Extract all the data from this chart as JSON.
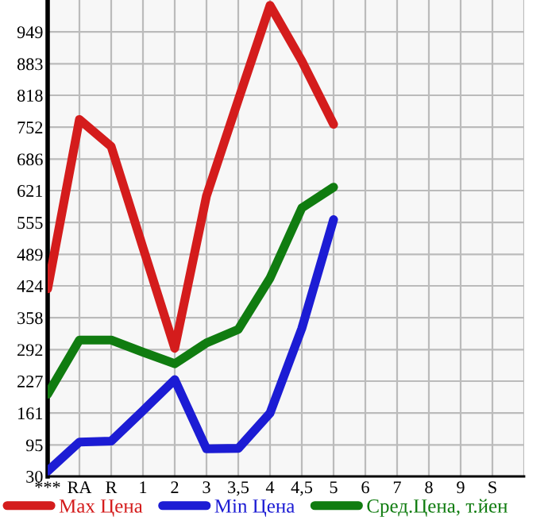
{
  "chart_data": {
    "type": "line",
    "categories": [
      "***",
      "RA",
      "R",
      "1",
      "2",
      "3",
      "3,5",
      "4",
      "4,5",
      "5",
      "6",
      "7",
      "8",
      "9",
      "S",
      null
    ],
    "series": [
      {
        "name": "Max Цена",
        "color": "#d41c1c",
        "values": [
          418,
          768,
          712,
          503,
          295,
          610,
          808,
          1004,
          889,
          758,
          null,
          null,
          null,
          null,
          null,
          null
        ]
      },
      {
        "name": "Min Цена",
        "color": "#1c1cd4",
        "values": [
          41,
          101,
          103,
          166,
          230,
          87,
          88,
          161,
          336,
          561,
          null,
          null,
          null,
          null,
          null,
          null
        ]
      },
      {
        "name": "Сред.Цена, т.йен",
        "color": "#107c10",
        "values": [
          200,
          312,
          312,
          287,
          263,
          306,
          334,
          440,
          585,
          628,
          null,
          null,
          null,
          null,
          null,
          null
        ]
      }
    ],
    "ylim": [
      30,
      1015
    ],
    "yticks": [
      30,
      95,
      161,
      227,
      292,
      358,
      424,
      489,
      555,
      621,
      686,
      752,
      818,
      883,
      949
    ],
    "grid": true,
    "legend": "bottom",
    "marker": "none",
    "line_style": "solid"
  }
}
